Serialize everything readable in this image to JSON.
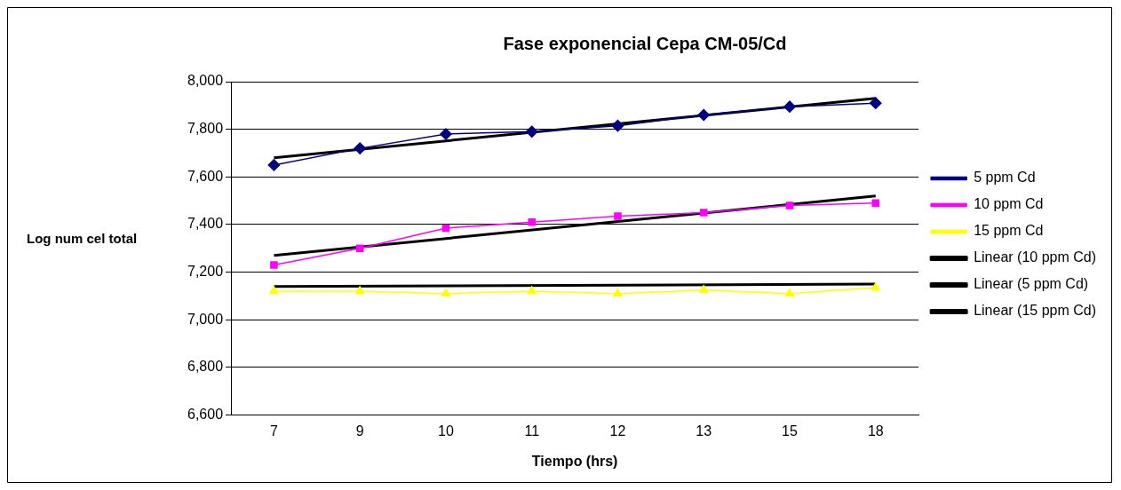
{
  "chart_data": {
    "type": "line",
    "title": "Fase exponencial Cepa CM-05/Cd",
    "xlabel": "Tiempo (hrs)",
    "ylabel": "Log num cel total",
    "categories": [
      "7",
      "9",
      "10",
      "11",
      "12",
      "13",
      "15",
      "18"
    ],
    "series": [
      {
        "name": "5 ppm Cd",
        "color": "#000080",
        "marker": "diamond",
        "values": [
          7650,
          7720,
          7780,
          7790,
          7815,
          7860,
          7895,
          7910
        ]
      },
      {
        "name": "10 ppm Cd",
        "color": "#ff00ff",
        "marker": "square",
        "values": [
          7230,
          7300,
          7385,
          7410,
          7435,
          7450,
          7480,
          7490
        ]
      },
      {
        "name": "15 ppm Cd",
        "color": "#ffff00",
        "marker": "triangle",
        "values": [
          7120,
          7120,
          7110,
          7120,
          7110,
          7125,
          7110,
          7135
        ]
      },
      {
        "name": "Linear (10 ppm Cd)",
        "color": "#000000",
        "marker": "none",
        "values": [
          7270,
          null,
          null,
          null,
          null,
          null,
          null,
          7520
        ]
      },
      {
        "name": "Linear (5 ppm Cd)",
        "color": "#000000",
        "marker": "none",
        "values": [
          7680,
          null,
          null,
          null,
          null,
          null,
          null,
          7930
        ]
      },
      {
        "name": "Linear (15 ppm Cd)",
        "color": "#000000",
        "marker": "none",
        "values": [
          7140,
          null,
          null,
          null,
          null,
          null,
          null,
          7150
        ]
      }
    ],
    "ylim": [
      6600,
      8000
    ],
    "yticks": [
      {
        "value": 6600,
        "label": "6,600"
      },
      {
        "value": 6800,
        "label": "6,800"
      },
      {
        "value": 7000,
        "label": "7,000"
      },
      {
        "value": 7200,
        "label": "7,200"
      },
      {
        "value": 7400,
        "label": "7,400"
      },
      {
        "value": 7600,
        "label": "7,600"
      },
      {
        "value": 7800,
        "label": "7,800"
      },
      {
        "value": 8000,
        "label": "8,000"
      }
    ],
    "grid": "y",
    "legend": "right"
  }
}
